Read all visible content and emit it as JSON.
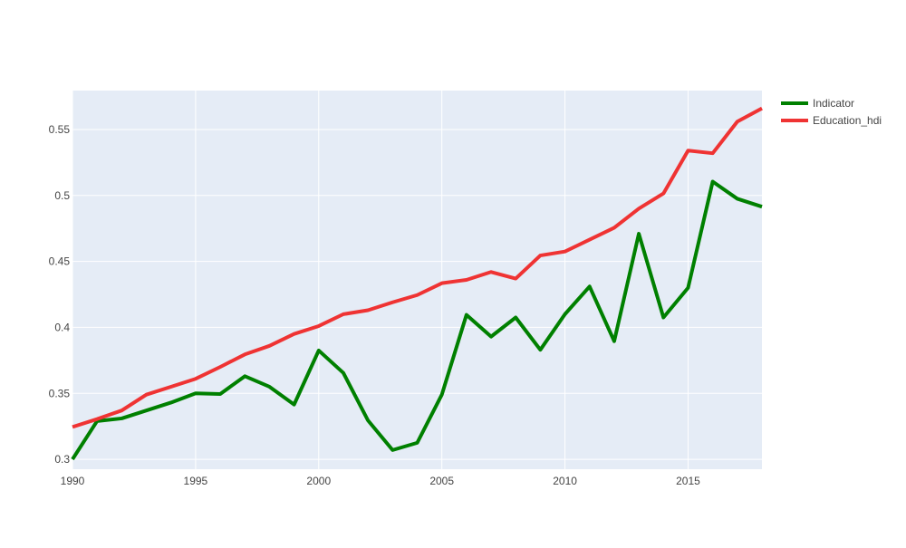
{
  "chart_data": {
    "type": "line",
    "title": "",
    "xlabel": "",
    "ylabel": "",
    "x": [
      1990,
      1991,
      1992,
      1993,
      1994,
      1995,
      1996,
      1997,
      1998,
      1999,
      2000,
      2001,
      2002,
      2003,
      2004,
      2005,
      2006,
      2007,
      2008,
      2009,
      2010,
      2011,
      2012,
      2013,
      2014,
      2015,
      2016,
      2017,
      2018
    ],
    "xlim": [
      1990,
      2018
    ],
    "ylim": [
      0.2925,
      0.5795
    ],
    "xticks": [
      1990,
      1995,
      2000,
      2005,
      2010,
      2015
    ],
    "xtick_labels": [
      "1990",
      "1995",
      "2000",
      "2005",
      "2010",
      "2015"
    ],
    "yticks": [
      0.3,
      0.35,
      0.4,
      0.45,
      0.5,
      0.55
    ],
    "ytick_labels": [
      "0.3",
      "0.35",
      "0.4",
      "0.45",
      "0.5",
      "0.55"
    ],
    "grid": true,
    "legend_position": "top-right, outside plot",
    "background": "#e5ecf6",
    "series": [
      {
        "name": "Indicator",
        "color": "#008000",
        "values": [
          0.3,
          0.329,
          0.331,
          0.337,
          0.343,
          0.35,
          0.3495,
          0.363,
          0.355,
          0.3415,
          0.3825,
          0.3655,
          0.3295,
          0.307,
          0.3125,
          0.349,
          0.4095,
          0.393,
          0.4075,
          0.383,
          0.41,
          0.431,
          0.3895,
          0.471,
          0.4075,
          0.43,
          0.5105,
          0.4975,
          0.4915
        ]
      },
      {
        "name": "Education_hdi",
        "color": "#ef3333",
        "values": [
          0.3245,
          0.3305,
          0.337,
          0.349,
          0.355,
          0.361,
          0.37,
          0.3795,
          0.386,
          0.395,
          0.401,
          0.41,
          0.413,
          0.419,
          0.4245,
          0.4335,
          0.436,
          0.442,
          0.437,
          0.4545,
          0.4575,
          0.4665,
          0.4755,
          0.49,
          0.5015,
          0.534,
          0.532,
          0.556,
          0.566
        ]
      }
    ]
  }
}
